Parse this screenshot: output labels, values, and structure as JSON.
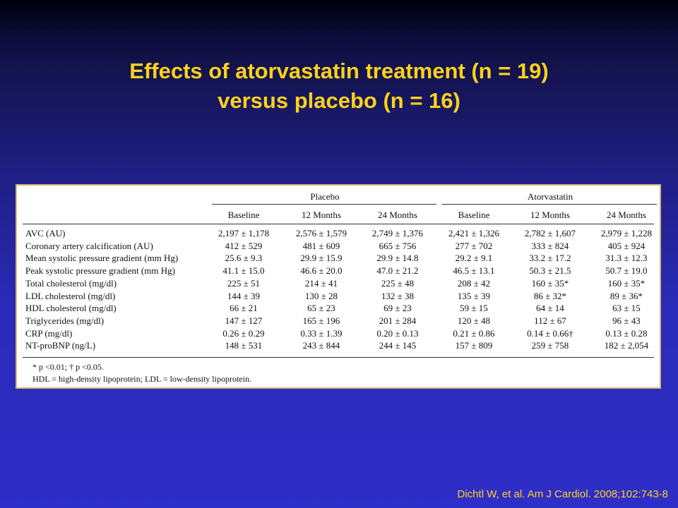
{
  "title": {
    "line1": "Effects of atorvastatin treatment (n = 19)",
    "line2": "versus placebo (n = 16)"
  },
  "table": {
    "groups": [
      "Placebo",
      "Atorvastatin"
    ],
    "columns": [
      "Baseline",
      "12 Months",
      "24 Months",
      "Baseline",
      "12 Months",
      "24 Months"
    ],
    "rows": [
      {
        "label": "AVC (AU)",
        "values": [
          "2,197 ± 1,178",
          "2,576 ± 1,579",
          "2,749 ± 1,376",
          "2,421 ± 1,326",
          "2,782 ± 1,607",
          "2,979 ± 1,228"
        ]
      },
      {
        "label": "Coronary artery calcification (AU)",
        "values": [
          "412 ± 529",
          "481 ± 609",
          "665 ± 756",
          "277 ± 702",
          "333 ± 824",
          "405 ± 924"
        ]
      },
      {
        "label": "Mean systolic pressure gradient (mm Hg)",
        "values": [
          "25.6 ± 9.3",
          "29.9 ± 15.9",
          "29.9 ± 14.8",
          "29.2 ± 9.1",
          "33.2 ± 17.2",
          "31.3 ± 12.3"
        ]
      },
      {
        "label": "Peak systolic pressure gradient (mm Hg)",
        "values": [
          "41.1 ± 15.0",
          "46.6 ± 20.0",
          "47.0 ± 21.2",
          "46.5 ± 13.1",
          "50.3 ± 21.5",
          "50.7 ± 19.0"
        ]
      },
      {
        "label": "Total cholesterol (mg/dl)",
        "values": [
          "225 ± 51",
          "214 ± 41",
          "225 ± 48",
          "208 ± 42",
          "160 ± 35*",
          "160 ± 35*"
        ]
      },
      {
        "label": "LDL cholesterol (mg/dl)",
        "values": [
          "144 ± 39",
          "130 ± 28",
          "132 ± 38",
          "135 ± 39",
          "86 ± 32*",
          "89 ± 36*"
        ]
      },
      {
        "label": "HDL cholesterol (mg/dl)",
        "values": [
          "66 ± 21",
          "65 ± 23",
          "69 ± 23",
          "59 ± 15",
          "64 ± 14",
          "63 ± 15"
        ]
      },
      {
        "label": "Triglycerides (mg/dl)",
        "values": [
          "147 ± 127",
          "165 ± 196",
          "201 ± 284",
          "120 ± 48",
          "112 ± 67",
          "96 ± 43"
        ]
      },
      {
        "label": "CRP (mg/dl)",
        "values": [
          "0.26 ± 0.29",
          "0.33 ± 1.39",
          "0.20 ± 0.13",
          "0.21 ± 0.86",
          "0.14 ± 0.66†",
          "0.13 ± 0.28"
        ]
      },
      {
        "label": "NT-proBNP (ng/L)",
        "values": [
          "148 ± 531",
          "243 ± 844",
          "244 ± 145",
          "157 ± 809",
          "259 ± 758",
          "182 ± 2,054"
        ]
      }
    ],
    "footnotes": [
      "* p <0.01; † p <0.05.",
      "HDL = high-density lipoprotein; LDL = low-density lipoprotein."
    ]
  },
  "citation": "Dichtl W, et al. Am J Cardiol. 2008;102:743-8"
}
